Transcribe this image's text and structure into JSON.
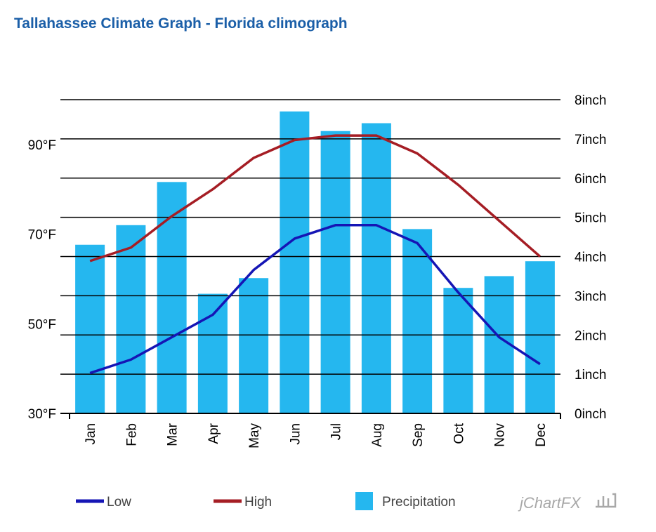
{
  "title": "Tallahassee Climate Graph - Florida climograph",
  "brand": "jChartFX",
  "legend": [
    "Low",
    "High",
    "Precipitation"
  ],
  "colors": {
    "low": "#1515b5",
    "high": "#a51d24",
    "precipitation": "#25b7ef",
    "title": "#1b5fa8"
  },
  "chart_data": {
    "type": "bar",
    "title": "Tallahassee Climate Graph - Florida climograph",
    "categories": [
      "Jan",
      "Feb",
      "Mar",
      "Apr",
      "May",
      "Jun",
      "Jul",
      "Aug",
      "Sep",
      "Oct",
      "Nov",
      "Dec"
    ],
    "left_axis": {
      "ylim": [
        30,
        100
      ],
      "ticks": [
        30,
        50,
        70,
        90
      ],
      "labels": [
        "30°F",
        "50°F",
        "70°F",
        "90°F"
      ]
    },
    "right_axis": {
      "ylim": [
        0,
        8
      ],
      "ticks": [
        0,
        1,
        2,
        3,
        4,
        5,
        6,
        7,
        8
      ],
      "labels": [
        "0inch",
        "1inch",
        "2inch",
        "3inch",
        "4inch",
        "5inch",
        "6inch",
        "7inch",
        "8inch"
      ]
    },
    "series": [
      {
        "name": "Low",
        "type": "line",
        "axis": "left",
        "values": [
          39,
          42,
          47,
          52,
          62,
          69,
          72,
          72,
          68,
          57,
          47,
          41
        ]
      },
      {
        "name": "High",
        "type": "line",
        "axis": "left",
        "values": [
          64,
          67,
          74,
          80,
          87,
          91,
          92,
          92,
          88,
          81,
          73,
          65
        ]
      },
      {
        "name": "Precipitation",
        "type": "bar",
        "axis": "right",
        "values": [
          4.3,
          4.8,
          5.9,
          3.05,
          3.45,
          7.7,
          7.2,
          7.4,
          4.7,
          3.2,
          3.5,
          3.88
        ]
      }
    ],
    "grid": true,
    "legend_position": "bottom"
  }
}
